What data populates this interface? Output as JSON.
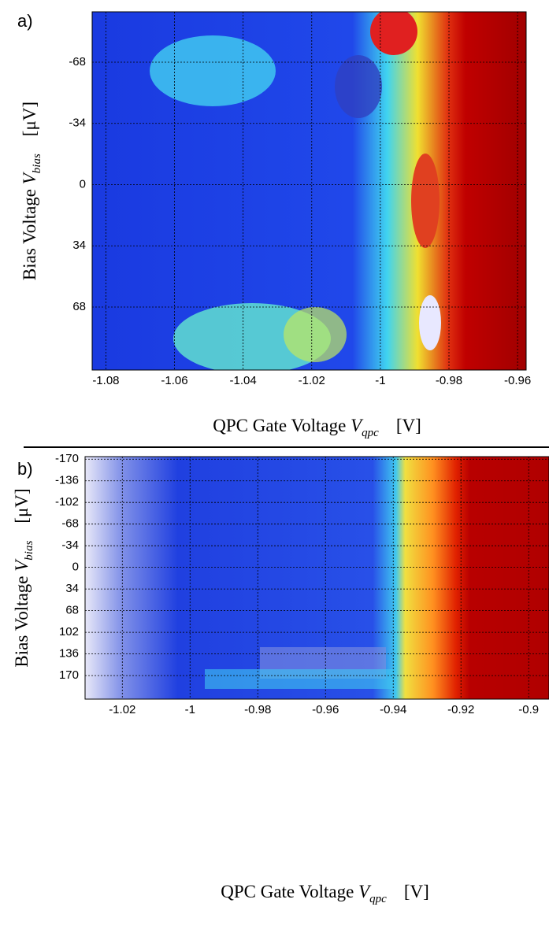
{
  "chart_data": [
    {
      "type": "heatmap",
      "panel_label": "a)",
      "xlabel": "QPC Gate Voltage",
      "xlabel_symbol": "V",
      "xlabel_sub": "qpc",
      "xlabel_unit": "[V]",
      "ylabel": "Bias Voltage",
      "ylabel_symbol": "V",
      "ylabel_sub": "bias",
      "ylabel_unit": "[μV]",
      "xlim": [
        -1.084,
        -0.9575
      ],
      "xticks": [
        -1.08,
        -1.06,
        -1.04,
        -1.02,
        -1,
        -0.98,
        -0.96
      ],
      "ylim": [
        103,
        -96
      ],
      "yticks": [
        -68,
        -34,
        0,
        34,
        68
      ],
      "grid": true
    },
    {
      "type": "heatmap",
      "panel_label": "b)",
      "xlabel": "QPC Gate Voltage",
      "xlabel_symbol": "V",
      "xlabel_sub": "qpc",
      "xlabel_unit": "[V]",
      "ylabel": "Bias Voltage",
      "ylabel_symbol": "V",
      "ylabel_sub": "bias",
      "ylabel_unit": "[μV]",
      "xlim": [
        -1.031,
        -0.894
      ],
      "xticks": [
        -1.02,
        -1,
        -0.98,
        -0.96,
        -0.94,
        -0.92,
        -0.9
      ],
      "ylim": [
        207,
        -174
      ],
      "yticks": [
        -170,
        -136,
        -102,
        -68,
        -34,
        0,
        34,
        68,
        102,
        136,
        170
      ],
      "grid": true
    }
  ]
}
